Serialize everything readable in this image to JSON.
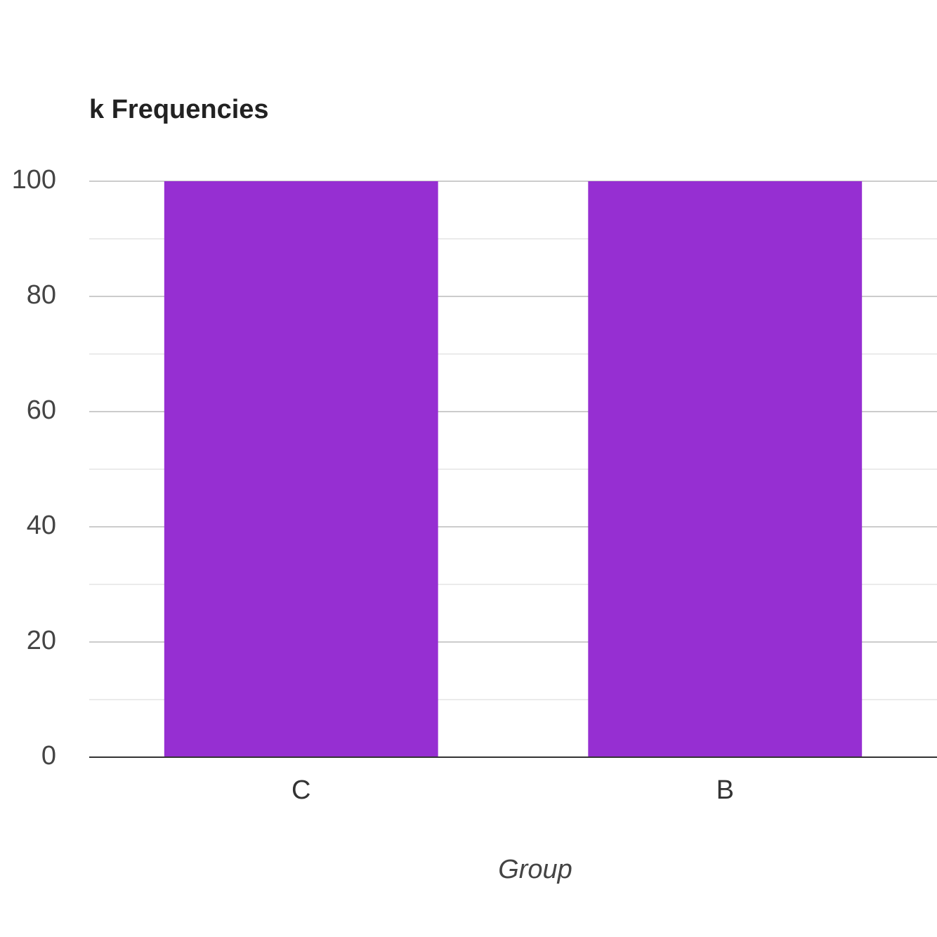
{
  "chart_data": {
    "type": "bar",
    "title": "k Frequencies",
    "x_label": "Group",
    "categories": [
      "C",
      "B"
    ],
    "values": [
      100,
      100
    ],
    "color": "#962fd2",
    "ylim": [
      0,
      100
    ],
    "yticks": [
      0,
      20,
      40,
      60,
      80,
      100
    ],
    "minor_yticks": [
      10,
      30,
      50,
      70,
      90
    ],
    "grid": true
  }
}
